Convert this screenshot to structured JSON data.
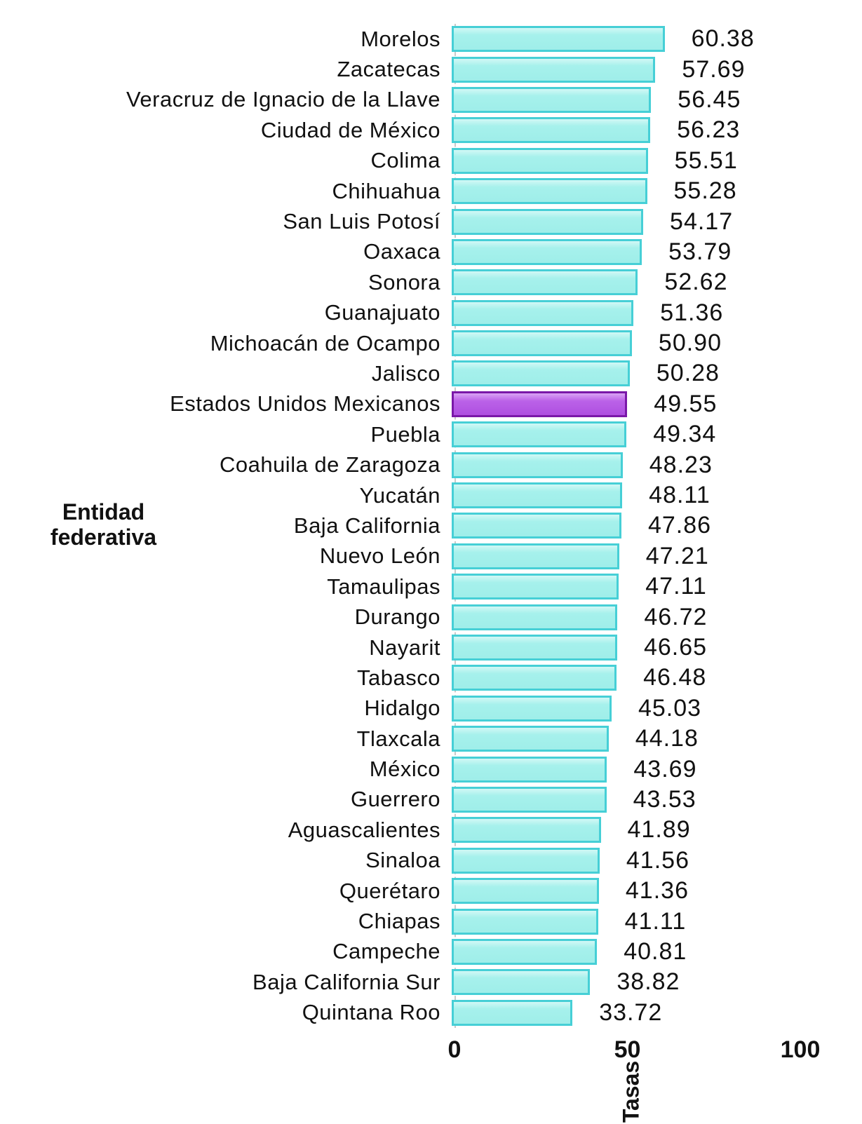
{
  "chart_data": {
    "type": "bar",
    "orientation": "horizontal",
    "categories": [
      "Morelos",
      "Zacatecas",
      "Veracruz de Ignacio de la Llave",
      "Ciudad de México",
      "Colima",
      "Chihuahua",
      "San Luis Potosí",
      "Oaxaca",
      "Sonora",
      "Guanajuato",
      "Michoacán de Ocampo",
      "Jalisco",
      "Estados Unidos Mexicanos",
      "Puebla",
      "Coahuila de Zaragoza",
      "Yucatán",
      "Baja California",
      "Nuevo León",
      "Tamaulipas",
      "Durango",
      "Nayarit",
      "Tabasco",
      "Hidalgo",
      "Tlaxcala",
      "México",
      "Guerrero",
      "Aguascalientes",
      "Sinaloa",
      "Querétaro",
      "Chiapas",
      "Campeche",
      "Baja California Sur",
      "Quintana Roo"
    ],
    "values": [
      60.38,
      57.69,
      56.45,
      56.23,
      55.51,
      55.28,
      54.17,
      53.79,
      52.62,
      51.36,
      50.9,
      50.28,
      49.55,
      49.34,
      48.23,
      48.11,
      47.86,
      47.21,
      47.11,
      46.72,
      46.65,
      46.48,
      45.03,
      44.18,
      43.69,
      43.53,
      41.89,
      41.56,
      41.36,
      41.11,
      40.81,
      38.82,
      33.72
    ],
    "highlight_index": 12,
    "highlight_category": "Estados Unidos Mexicanos",
    "xlabel": "Tasas",
    "ylabel": "Entidad federativa",
    "xlim": [
      0,
      100
    ],
    "x_ticks": [
      0,
      50,
      100
    ],
    "grid": false,
    "legend": false,
    "colors": {
      "bar_fill": "#a6f1ec",
      "bar_border": "#46cfd6",
      "highlight_fill": "#bb62e8",
      "highlight_border": "#7a18a8",
      "text": "#111111",
      "background": "#ffffff"
    }
  },
  "y_axis": {
    "title": "Entidad federativa"
  },
  "x_axis": {
    "title": "Tasas"
  }
}
